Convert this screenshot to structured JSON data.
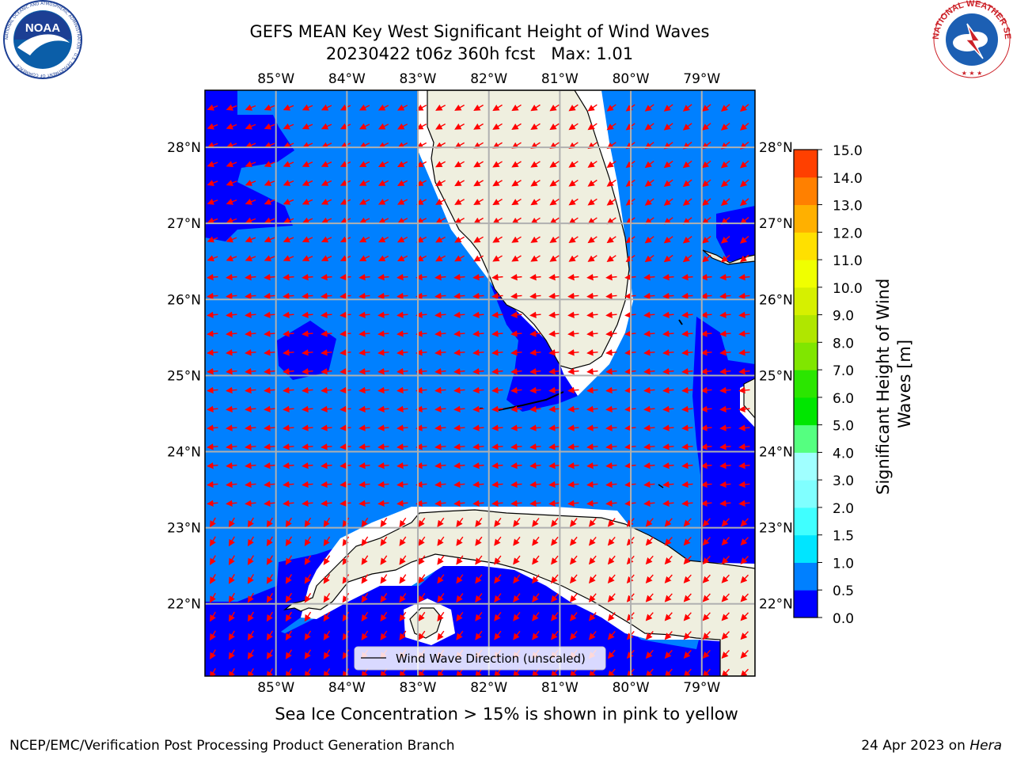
{
  "header": {
    "title_line1": "GEFS MEAN Key West Significant Height of Wind Waves",
    "title_line2": "20230422 t06z 360h fcst   Max: 1.01"
  },
  "logos": {
    "left_text": "NOAA",
    "left_ring": "NATIONAL OCEANIC AND ATMOSPHERIC ADMINISTRATION · U.S. DEPARTMENT OF COMMERCE",
    "right_ring": "NATIONAL WEATHER SERVICE"
  },
  "map": {
    "lon_labels": [
      "85°W",
      "84°W",
      "83°W",
      "82°W",
      "81°W",
      "80°W",
      "79°W"
    ],
    "lat_labels": [
      "28°N",
      "27°N",
      "26°N",
      "25°N",
      "24°N",
      "23°N",
      "22°N"
    ],
    "lon_values": [
      -85,
      -84,
      -83,
      -82,
      -81,
      -80,
      -79
    ],
    "lat_values": [
      28,
      27,
      26,
      25,
      24,
      23,
      22
    ],
    "extent": {
      "lon_min": -86.0,
      "lon_max": -78.25,
      "lat_min": 21.05,
      "lat_max": 28.75
    },
    "legend_label": "Wind Wave Direction (unscaled)",
    "land_color": "#efefdf",
    "arrow_color": "#ff0000",
    "grid_color": "#b0b0b0"
  },
  "colorbar": {
    "label": "Significant Height of Wind Waves [m]",
    "label_line1": "Significant Height of Wind",
    "label_line2": "Waves [m]",
    "ticks": [
      "0.0",
      "0.5",
      "1.0",
      "1.5",
      "2.0",
      "3.0",
      "4.0",
      "5.0",
      "6.0",
      "7.0",
      "8.0",
      "9.0",
      "10.0",
      "11.0",
      "12.0",
      "13.0",
      "14.0",
      "15.0"
    ],
    "colors": [
      "#0000ff",
      "#0080ff",
      "#00e5ff",
      "#40ffff",
      "#80ffff",
      "#a0ffff",
      "#55ff80",
      "#00e600",
      "#2be600",
      "#80e600",
      "#b0e600",
      "#d6f000",
      "#f0ff00",
      "#ffe000",
      "#ffb000",
      "#ff8000",
      "#ff4000",
      "#ff0000"
    ]
  },
  "footer": {
    "note": "Sea Ice Concentration > 15% is shown in pink to yellow",
    "left": "NCEP/EMC/Verification Post Processing Product Generation Branch",
    "right_prefix": "24 Apr 2023 on ",
    "right_machine": "Hera"
  }
}
